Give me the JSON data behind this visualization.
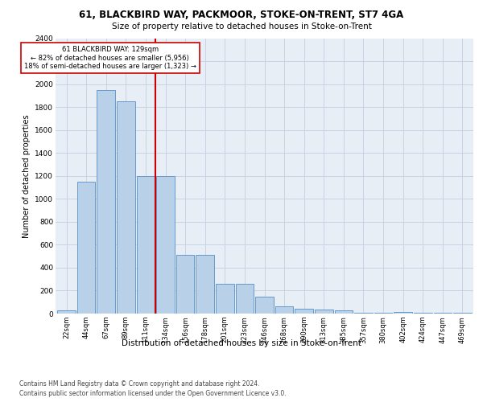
{
  "title1": "61, BLACKBIRD WAY, PACKMOOR, STOKE-ON-TRENT, ST7 4GA",
  "title2": "Size of property relative to detached houses in Stoke-on-Trent",
  "xlabel": "Distribution of detached houses by size in Stoke-on-Trent",
  "ylabel": "Number of detached properties",
  "annotation_title": "61 BLACKBIRD WAY: 129sqm",
  "annotation_line1": "← 82% of detached houses are smaller (5,956)",
  "annotation_line2": "18% of semi-detached houses are larger (1,323) →",
  "bar_color": "#b8d0e8",
  "bar_edge_color": "#6699cc",
  "vline_color": "#cc0000",
  "annotation_box_color": "#ffffff",
  "annotation_box_edge": "#cc0000",
  "grid_color": "#c8d4e4",
  "background_color": "#e8eef6",
  "categories": [
    "22sqm",
    "44sqm",
    "67sqm",
    "89sqm",
    "111sqm",
    "134sqm",
    "156sqm",
    "178sqm",
    "201sqm",
    "223sqm",
    "246sqm",
    "268sqm",
    "290sqm",
    "313sqm",
    "335sqm",
    "357sqm",
    "380sqm",
    "402sqm",
    "424sqm",
    "447sqm",
    "469sqm"
  ],
  "values": [
    30,
    1150,
    1950,
    1850,
    1200,
    1200,
    510,
    510,
    260,
    260,
    150,
    65,
    40,
    35,
    30,
    10,
    5,
    15,
    5,
    5,
    5
  ],
  "ylim": [
    0,
    2400
  ],
  "yticks": [
    0,
    200,
    400,
    600,
    800,
    1000,
    1200,
    1400,
    1600,
    1800,
    2000,
    2200,
    2400
  ],
  "vline_x_index": 4.5,
  "footer1": "Contains HM Land Registry data © Crown copyright and database right 2024.",
  "footer2": "Contains public sector information licensed under the Open Government Licence v3.0."
}
